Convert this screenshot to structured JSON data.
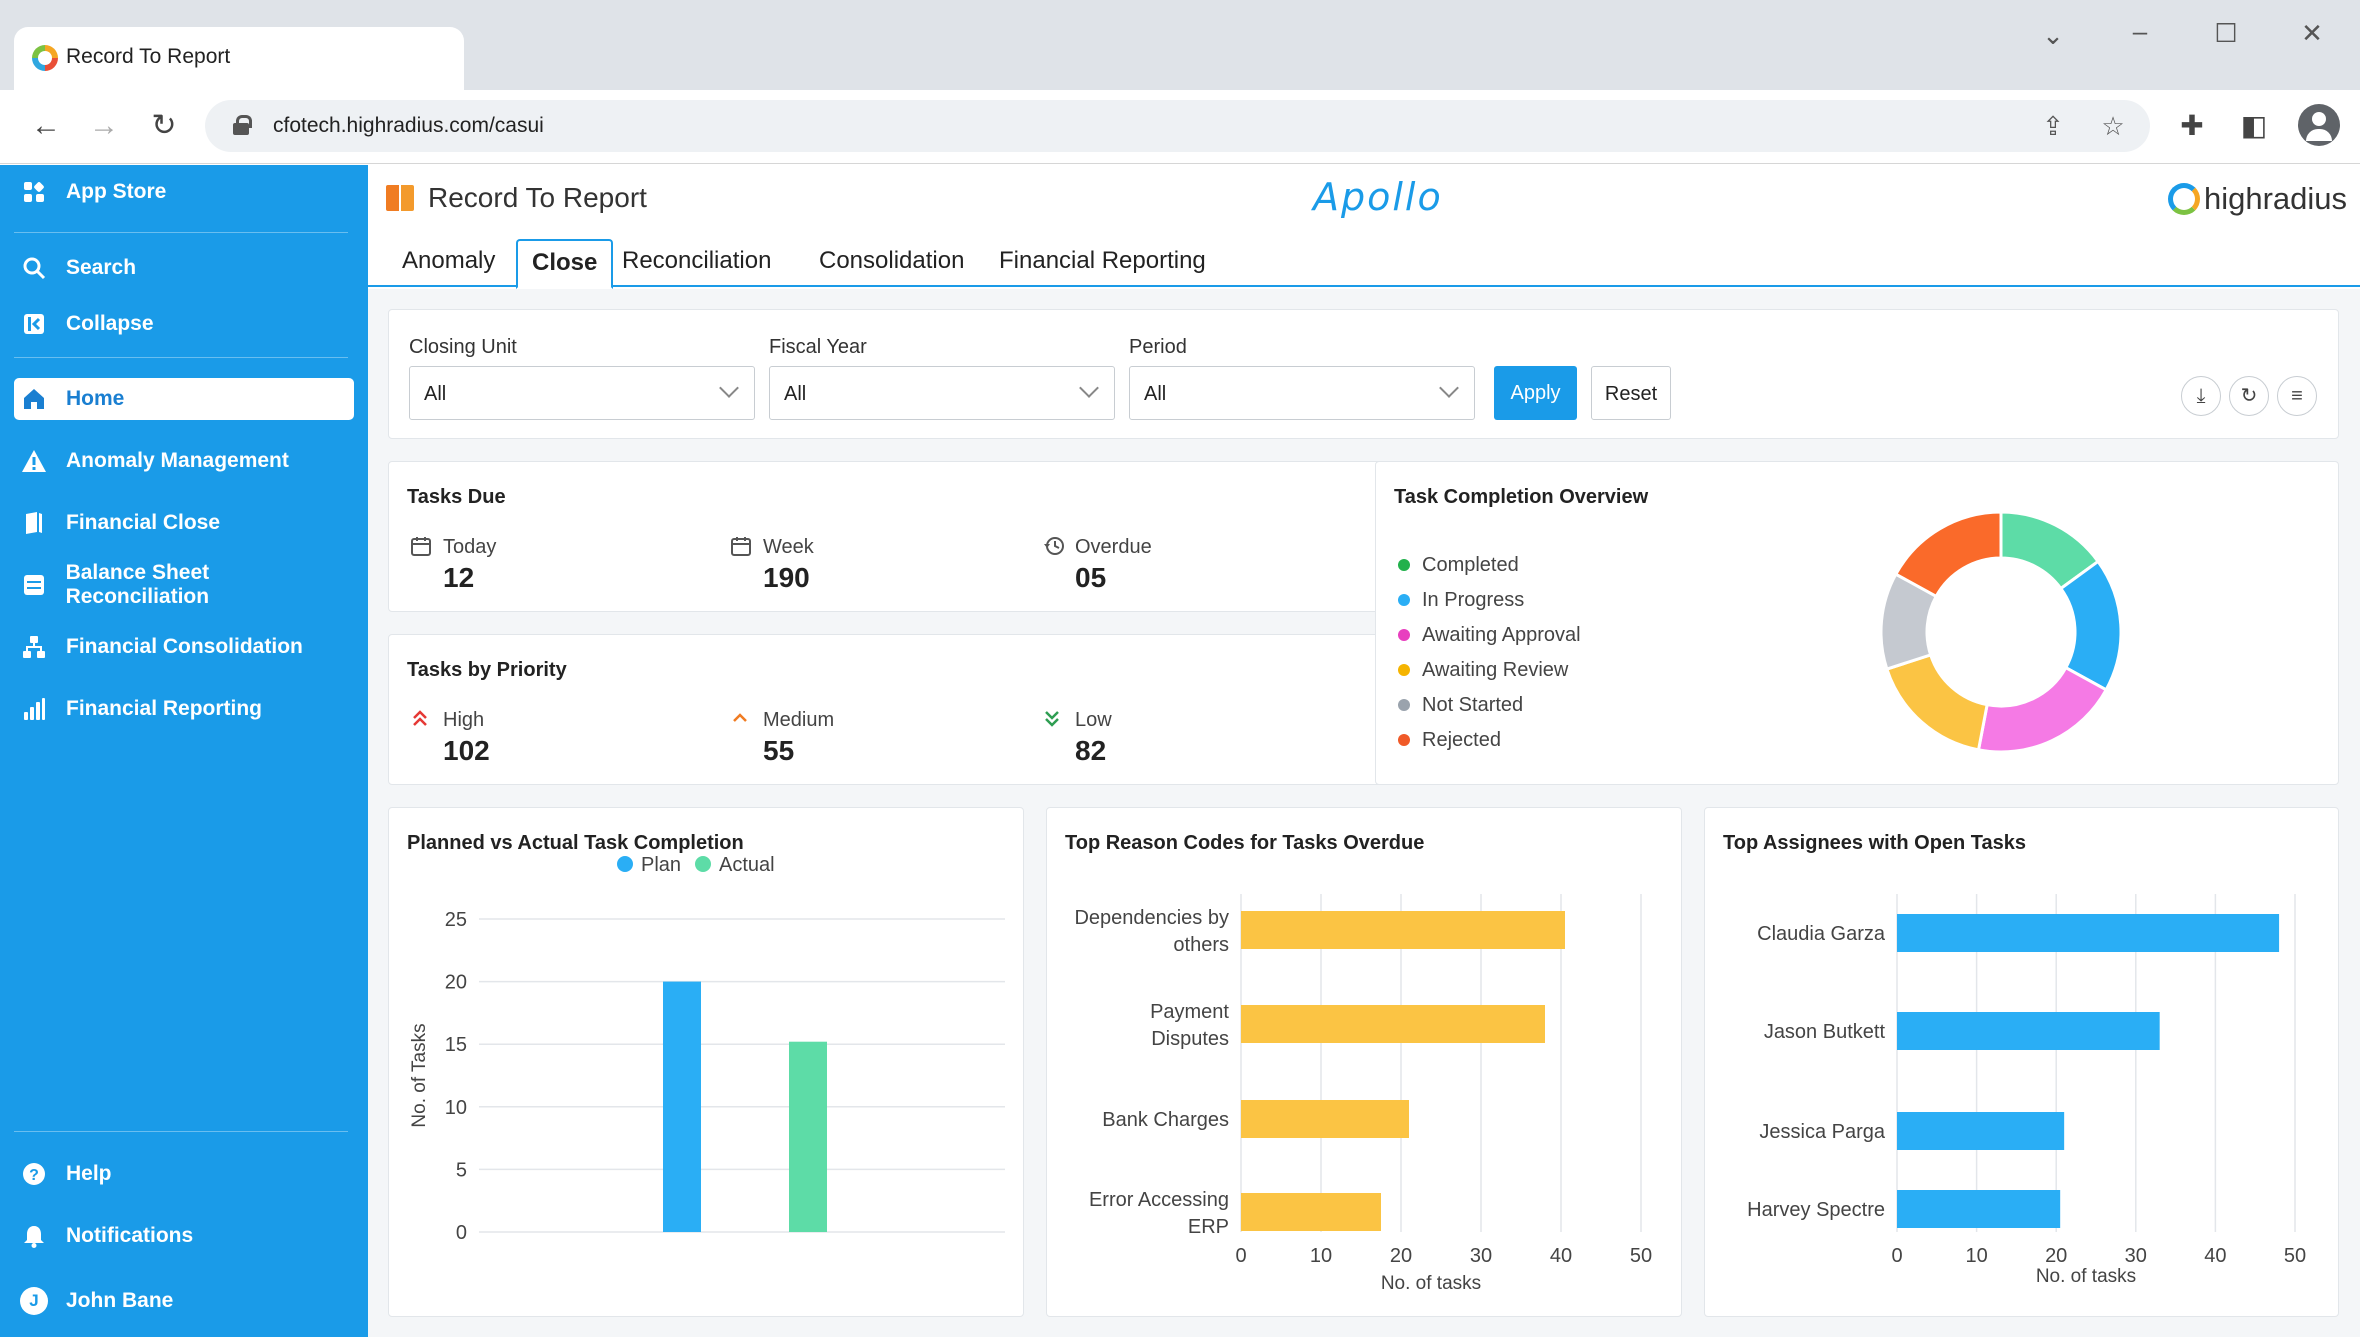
{
  "browser": {
    "tab_title": "Record  To  Report",
    "url": "cfotech.highradius.com/casui"
  },
  "sidebar": {
    "app_store": "App Store",
    "search": "Search",
    "collapse": "Collapse",
    "items": [
      {
        "label": "Home",
        "icon": "home-icon"
      },
      {
        "label": "Anomaly Management",
        "icon": "warning-icon"
      },
      {
        "label": "Financial Close",
        "icon": "book-icon"
      },
      {
        "label": "Balance Sheet Reconciliation",
        "icon": "ledger-icon"
      },
      {
        "label": "Financial Consolidation",
        "icon": "hierarchy-icon"
      },
      {
        "label": "Financial Reporting",
        "icon": "bar-chart-icon"
      }
    ],
    "help": "Help",
    "notifications": "Notifications",
    "user_initial": "J",
    "user_name": "John Bane"
  },
  "header": {
    "title": "Record To Report",
    "center_logo": "Apollo",
    "brand": "highradius"
  },
  "tabs": [
    "Anomaly",
    "Close",
    "Reconciliation",
    "Consolidation",
    "Financial Reporting"
  ],
  "filters": {
    "closing_unit_label": "Closing Unit",
    "closing_unit_value": "All",
    "fiscal_year_label": "Fiscal Year",
    "fiscal_year_value": "All",
    "period_label": "Period",
    "period_value": "All",
    "apply": "Apply",
    "reset": "Reset"
  },
  "tasks_due": {
    "title": "Tasks Due",
    "today_label": "Today",
    "today_value": "12",
    "week_label": "Week",
    "week_value": "190",
    "overdue_label": "Overdue",
    "overdue_value": "05"
  },
  "tasks_priority": {
    "title": "Tasks by Priority",
    "high_label": "High",
    "high_value": "102",
    "medium_label": "Medium",
    "medium_value": "55",
    "low_label": "Low",
    "low_value": "82"
  },
  "colors": {
    "accent": "#1a9be8",
    "plan": "#2aaef5",
    "actual": "#5ddca7",
    "reason_bar": "#fbc444",
    "assignee_bar": "#2aaef5"
  },
  "chart_data": [
    {
      "type": "pie",
      "title": "Task Completion Overview",
      "donut": true,
      "slices": [
        {
          "name": "Completed",
          "value": 15,
          "color": "#5ddca7"
        },
        {
          "name": "In Progress",
          "value": 18,
          "color": "#2aaef5"
        },
        {
          "name": "Awaiting Approval",
          "value": 20,
          "color": "#f57ae5"
        },
        {
          "name": "Awaiting Review",
          "value": 17,
          "color": "#fbc444"
        },
        {
          "name": "Not Started",
          "value": 13,
          "color": "#c5c9d0"
        },
        {
          "name": "Rejected",
          "value": 17,
          "color": "#fa6a2a"
        }
      ]
    },
    {
      "type": "bar",
      "title": "Planned vs Actual Task Completion",
      "ylabel": "No. of Tasks",
      "ylim": [
        0,
        25
      ],
      "yticks": [
        0,
        5,
        10,
        15,
        20,
        25
      ],
      "series": [
        {
          "name": "Plan",
          "values": [
            20
          ]
        },
        {
          "name": "Actual",
          "values": [
            15.2
          ]
        }
      ],
      "legend": "top"
    },
    {
      "type": "bar",
      "orientation": "horizontal",
      "title": "Top Reason Codes for Tasks Overdue",
      "xlabel": "No. of tasks",
      "xlim": [
        0,
        50
      ],
      "xticks": [
        0,
        10,
        20,
        30,
        40,
        50
      ],
      "categories": [
        [
          "Dependencies by",
          "others"
        ],
        [
          "Payment",
          "Disputes"
        ],
        [
          "Bank Charges"
        ],
        [
          "Error Accessing",
          "ERP"
        ]
      ],
      "values": [
        40.5,
        38,
        21,
        17.5
      ]
    },
    {
      "type": "bar",
      "orientation": "horizontal",
      "title": "Top Assignees with Open Tasks",
      "xlabel": "No. of tasks",
      "xlim": [
        0,
        50
      ],
      "xticks": [
        0,
        10,
        20,
        30,
        40,
        50
      ],
      "categories": [
        [
          "Claudia Garza"
        ],
        [
          "Jason Butkett"
        ],
        [
          "Jessica Parga"
        ],
        [
          "Harvey Spectre"
        ]
      ],
      "values": [
        48,
        33,
        21,
        20.5
      ]
    }
  ]
}
